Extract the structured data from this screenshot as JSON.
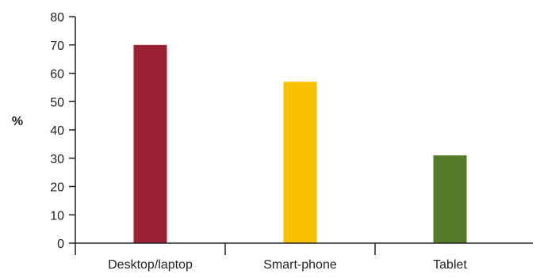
{
  "chart_data": {
    "type": "bar",
    "categories": [
      "Desktop/laptop",
      "Smart-phone",
      "Tablet"
    ],
    "values": [
      70,
      57,
      31
    ],
    "colors": [
      "#9b2033",
      "#f7c200",
      "#547a29"
    ],
    "ylabel": "%",
    "xlabel": "",
    "ylim": [
      0,
      80
    ],
    "yticks": [
      0,
      10,
      20,
      30,
      40,
      50,
      60,
      70,
      80
    ],
    "grid": false,
    "legend": "none"
  }
}
